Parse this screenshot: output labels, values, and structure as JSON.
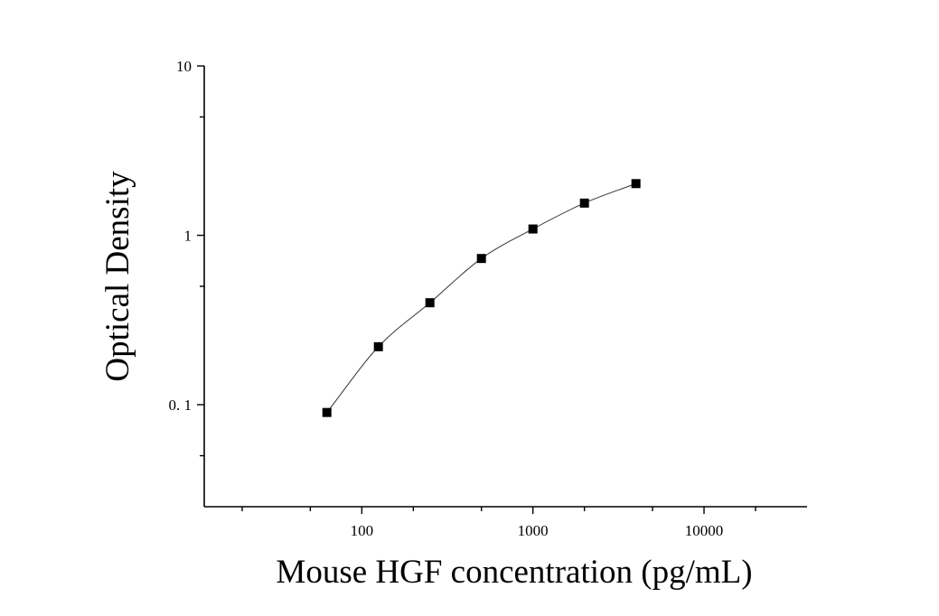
{
  "chart_data": {
    "type": "scatter",
    "title": "",
    "xlabel": "Mouse HGF concentration (pg/mL)",
    "ylabel": "Optical Density",
    "x_scale": "log",
    "y_scale": "log",
    "xlim": [
      12,
      40000
    ],
    "ylim": [
      0.025,
      10
    ],
    "x_ticks": [
      100,
      1000,
      10000
    ],
    "x_tick_labels": [
      "100",
      "1000",
      "10000"
    ],
    "y_ticks": [
      0.1,
      1,
      10
    ],
    "y_tick_labels": [
      "0. 1",
      "1",
      "10"
    ],
    "grid": false,
    "legend": "none",
    "series": [
      {
        "marker": "square",
        "color": "#000000",
        "x": [
          62.5,
          125,
          250,
          500,
          1000,
          2000,
          4000
        ],
        "y": [
          0.09,
          0.22,
          0.4,
          0.73,
          1.09,
          1.55,
          2.02
        ]
      }
    ],
    "fit_curve": {
      "style": "line",
      "color": "#333333"
    }
  }
}
